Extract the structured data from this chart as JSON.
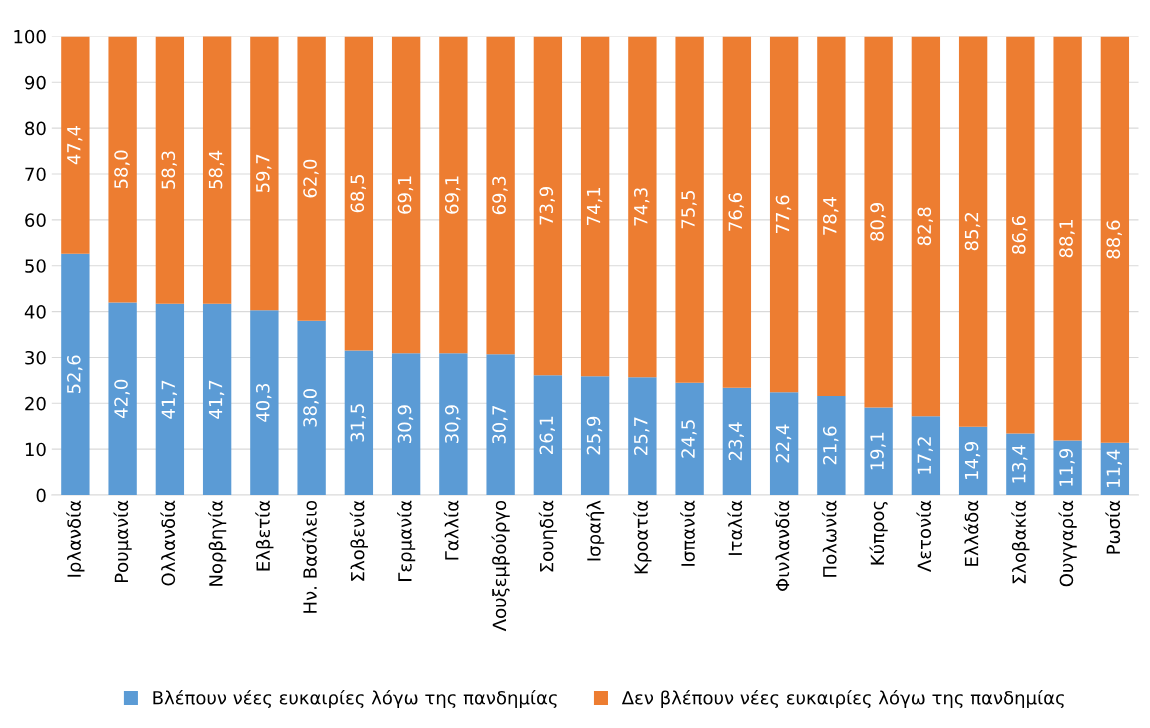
{
  "chart_data": {
    "type": "bar",
    "stacked": true,
    "categories": [
      "Ιρλανδία",
      "Ρουμανία",
      "Ολλανδία",
      "Νορβηγία",
      "Ελβετία",
      "Ην. Βασίλειο",
      "Σλοβενία",
      "Γερμανία",
      "Γαλλία",
      "Λουξεμβούργο",
      "Σουηδία",
      "Ισραήλ",
      "Κροατία",
      "Ισπανία",
      "Ιταλία",
      "Φινλανδία",
      "Πολωνία",
      "Κύπρος",
      "Λετονία",
      "Ελλάδα",
      "Σλοβακία",
      "Ουγγαρία",
      "Ρωσία"
    ],
    "series": [
      {
        "name": "Βλέπουν νέες ευκαιρίες λόγω της πανδημίας",
        "color": "#5b9bd5",
        "values": [
          52.6,
          42.0,
          41.7,
          41.7,
          40.3,
          38.0,
          31.5,
          30.9,
          30.9,
          30.7,
          26.1,
          25.9,
          25.7,
          24.5,
          23.4,
          22.4,
          21.6,
          19.1,
          17.2,
          14.9,
          13.4,
          11.9,
          11.4
        ],
        "value_labels": [
          "52,6",
          "42,0",
          "41,7",
          "41,7",
          "40,3",
          "38,0",
          "31,5",
          "30,9",
          "30,9",
          "30,7",
          "26,1",
          "25,9",
          "25,7",
          "24,5",
          "23,4",
          "22,4",
          "21,6",
          "19,1",
          "17,2",
          "14,9",
          "13,4",
          "11,9",
          "11,4"
        ]
      },
      {
        "name": "Δεν βλέπουν νέες ευκαιρίες λόγω της πανδημίας",
        "color": "#ed7d31",
        "values": [
          47.4,
          58.0,
          58.3,
          58.4,
          59.7,
          62.0,
          68.5,
          69.1,
          69.1,
          69.3,
          73.9,
          74.1,
          74.3,
          75.5,
          76.6,
          77.6,
          78.4,
          80.9,
          82.8,
          85.2,
          86.6,
          88.1,
          88.6
        ],
        "value_labels": [
          "47,4",
          "58,0",
          "58,3",
          "58,4",
          "59,7",
          "62,0",
          "68,5",
          "69,1",
          "69,1",
          "69,3",
          "73,9",
          "74,1",
          "74,3",
          "75,5",
          "76,6",
          "77,6",
          "78,4",
          "80,9",
          "82,8",
          "85,2",
          "86,6",
          "88,1",
          "88,6"
        ]
      }
    ],
    "ylim": [
      0,
      100
    ],
    "yticks": [
      0,
      10,
      20,
      30,
      40,
      50,
      60,
      70,
      80,
      90,
      100
    ],
    "grid": "y",
    "legend": "bottom"
  }
}
